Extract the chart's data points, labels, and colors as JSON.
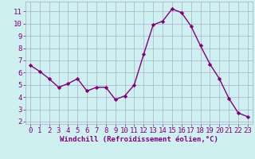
{
  "x": [
    0,
    1,
    2,
    3,
    4,
    5,
    6,
    7,
    8,
    9,
    10,
    11,
    12,
    13,
    14,
    15,
    16,
    17,
    18,
    19,
    20,
    21,
    22,
    23
  ],
  "y": [
    6.6,
    6.1,
    5.5,
    4.8,
    5.1,
    5.5,
    4.5,
    4.8,
    4.8,
    3.8,
    4.1,
    5.0,
    7.5,
    9.9,
    10.2,
    11.2,
    10.9,
    9.8,
    8.2,
    6.7,
    5.5,
    3.9,
    2.7,
    2.4
  ],
  "line_color": "#800080",
  "marker": "D",
  "markersize": 2.2,
  "linewidth": 1.0,
  "bg_color": "#cff0f0",
  "grid_color": "#aaaacc",
  "xlabel": "Windchill (Refroidissement éolien,°C)",
  "xlim": [
    -0.5,
    23.5
  ],
  "ylim": [
    1.8,
    11.8
  ],
  "yticks": [
    2,
    3,
    4,
    5,
    6,
    7,
    8,
    9,
    10,
    11
  ],
  "xticks": [
    0,
    1,
    2,
    3,
    4,
    5,
    6,
    7,
    8,
    9,
    10,
    11,
    12,
    13,
    14,
    15,
    16,
    17,
    18,
    19,
    20,
    21,
    22,
    23
  ],
  "tick_color": "#800080",
  "label_color": "#800080",
  "xlabel_fontsize": 6.5,
  "tick_fontsize": 6.5
}
